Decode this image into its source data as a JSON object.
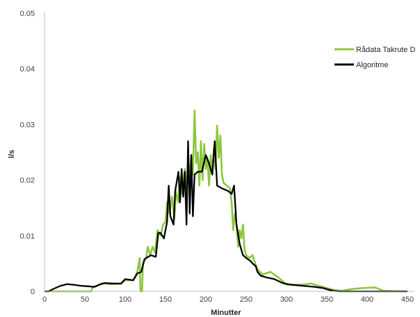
{
  "chart_data": {
    "type": "line",
    "xlabel": "Minutter",
    "ylabel": "l/s",
    "xlim": [
      0,
      450
    ],
    "ylim": [
      0,
      0.05
    ],
    "x_ticks": [
      "0",
      "50",
      "100",
      "150",
      "200",
      "250",
      "300",
      "350",
      "400",
      "450"
    ],
    "y_ticks": [
      "0",
      "0.01",
      "0.02",
      "0.03",
      "0.04",
      "0.05"
    ],
    "grid": false,
    "legend_position": "top-right",
    "series": [
      {
        "name": "Rådata Takrute D",
        "color": "#8dc63f",
        "points": [
          [
            0,
            0
          ],
          [
            58,
            0
          ],
          [
            60,
            0.0008
          ],
          [
            65,
            0.001
          ],
          [
            72,
            0.0015
          ],
          [
            80,
            0.0013
          ],
          [
            95,
            0.0014
          ],
          [
            100,
            0.002
          ],
          [
            110,
            0.002
          ],
          [
            115,
            0.0035
          ],
          [
            118,
            0.006
          ],
          [
            119,
            0
          ],
          [
            121,
            0
          ],
          [
            122,
            0.005
          ],
          [
            126,
            0.006
          ],
          [
            128,
            0.008
          ],
          [
            131,
            0.0065
          ],
          [
            134,
            0.008
          ],
          [
            137,
            0.007
          ],
          [
            140,
            0.011
          ],
          [
            144,
            0.01
          ],
          [
            147,
            0.012
          ],
          [
            150,
            0.0125
          ],
          [
            152,
            0.016
          ],
          [
            155,
            0.014
          ],
          [
            158,
            0.017
          ],
          [
            161,
            0.013
          ],
          [
            163,
            0.018
          ],
          [
            166,
            0.016
          ],
          [
            168,
            0.0205
          ],
          [
            170,
            0.0175
          ],
          [
            172,
            0.019
          ],
          [
            174,
            0.022
          ],
          [
            176,
            0.0185
          ],
          [
            178,
            0.023
          ],
          [
            180,
            0.0205
          ],
          [
            182,
            0.0245
          ],
          [
            184,
            0.021
          ],
          [
            186,
            0.0325
          ],
          [
            188,
            0.023
          ],
          [
            190,
            0.025
          ],
          [
            192,
            0.019
          ],
          [
            194,
            0.027
          ],
          [
            196,
            0.02
          ],
          [
            198,
            0.0265
          ],
          [
            200,
            0.022
          ],
          [
            202,
            0.024
          ],
          [
            204,
            0.019
          ],
          [
            206,
            0.0245
          ],
          [
            208,
            0.021
          ],
          [
            210,
            0.026
          ],
          [
            212,
            0.022
          ],
          [
            214,
            0.0298
          ],
          [
            216,
            0.024
          ],
          [
            218,
            0.028
          ],
          [
            220,
            0.021
          ],
          [
            222,
            0.0195
          ],
          [
            226,
            0.019
          ],
          [
            230,
            0.0185
          ],
          [
            232,
            0.016
          ],
          [
            234,
            0.011
          ],
          [
            236,
            0.014
          ],
          [
            238,
            0.012
          ],
          [
            240,
            0.008
          ],
          [
            242,
            0.011
          ],
          [
            244,
            0.0095
          ],
          [
            246,
            0.012
          ],
          [
            248,
            0.0075
          ],
          [
            250,
            0.0065
          ],
          [
            254,
            0.006
          ],
          [
            258,
            0.0065
          ],
          [
            260,
            0.0055
          ],
          [
            264,
            0.004
          ],
          [
            270,
            0.003
          ],
          [
            280,
            0.0035
          ],
          [
            290,
            0.0025
          ],
          [
            300,
            0.0012
          ],
          [
            320,
            0.0012
          ],
          [
            330,
            0.0014
          ],
          [
            340,
            0.001
          ],
          [
            350,
            0.0006
          ],
          [
            360,
            0.0002
          ],
          [
            370,
            0.0001
          ],
          [
            380,
            0.0004
          ],
          [
            395,
            0.0006
          ],
          [
            410,
            0.0007
          ],
          [
            415,
            0.0004
          ],
          [
            420,
            0.0001
          ],
          [
            440,
            0
          ],
          [
            450,
            0
          ]
        ]
      },
      {
        "name": "Algoritme",
        "color": "#000000",
        "points": [
          [
            0,
            0
          ],
          [
            5,
            0
          ],
          [
            12,
            0.0005
          ],
          [
            20,
            0.001
          ],
          [
            28,
            0.0013
          ],
          [
            35,
            0.0012
          ],
          [
            45,
            0.001
          ],
          [
            55,
            0.0009
          ],
          [
            62,
            0.0008
          ],
          [
            68,
            0.0012
          ],
          [
            75,
            0.0015
          ],
          [
            85,
            0.0014
          ],
          [
            95,
            0.0014
          ],
          [
            100,
            0.0022
          ],
          [
            110,
            0.002
          ],
          [
            115,
            0.0032
          ],
          [
            120,
            0.0035
          ],
          [
            124,
            0.0058
          ],
          [
            132,
            0.0065
          ],
          [
            138,
            0.0062
          ],
          [
            141,
            0.0105
          ],
          [
            144,
            0.0105
          ],
          [
            148,
            0.0095
          ],
          [
            152,
            0.0125
          ],
          [
            154,
            0.019
          ],
          [
            156,
            0.0135
          ],
          [
            160,
            0.012
          ],
          [
            162,
            0.018
          ],
          [
            166,
            0.0215
          ],
          [
            168,
            0.016
          ],
          [
            170,
            0.022
          ],
          [
            172,
            0.017
          ],
          [
            174,
            0.0215
          ],
          [
            176,
            0.012
          ],
          [
            178,
            0.027
          ],
          [
            180,
            0.014
          ],
          [
            182,
            0.0245
          ],
          [
            184,
            0.0135
          ],
          [
            186,
            0.021
          ],
          [
            190,
            0.0215
          ],
          [
            195,
            0.0215
          ],
          [
            200,
            0.0245
          ],
          [
            204,
            0.023
          ],
          [
            208,
            0.021
          ],
          [
            211,
            0.027
          ],
          [
            214,
            0.019
          ],
          [
            220,
            0.0185
          ],
          [
            228,
            0.018
          ],
          [
            232,
            0.0175
          ],
          [
            235,
            0.019
          ],
          [
            238,
            0.012
          ],
          [
            242,
            0.0085
          ],
          [
            246,
            0.0065
          ],
          [
            250,
            0.006
          ],
          [
            255,
            0.0055
          ],
          [
            258,
            0.005
          ],
          [
            262,
            0.0045
          ],
          [
            264,
            0.0035
          ],
          [
            268,
            0.0028
          ],
          [
            275,
            0.0025
          ],
          [
            285,
            0.0022
          ],
          [
            295,
            0.0015
          ],
          [
            305,
            0.0012
          ],
          [
            320,
            0.001
          ],
          [
            335,
            0.0008
          ],
          [
            345,
            0.0006
          ],
          [
            352,
            0.0003
          ],
          [
            358,
            0.0001
          ],
          [
            365,
            0
          ],
          [
            450,
            0
          ]
        ]
      }
    ]
  }
}
